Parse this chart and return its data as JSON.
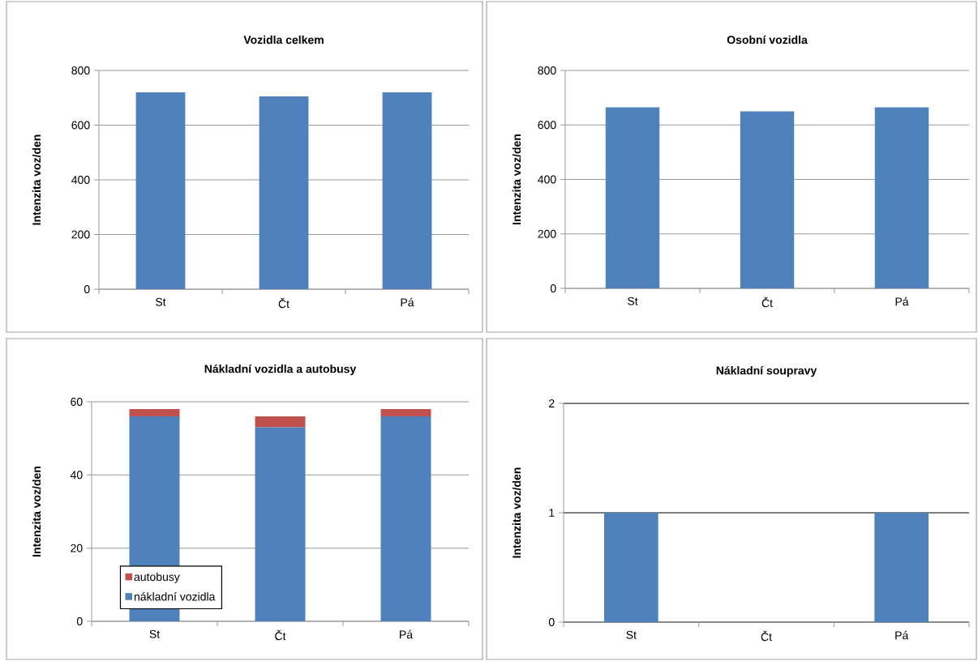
{
  "chart_data": [
    {
      "type": "bar",
      "title": "Vozidla celkem",
      "ylabel": "Intenzita voz/den",
      "categories": [
        "St",
        "Čt",
        "Pá"
      ],
      "values": [
        720,
        705,
        720
      ],
      "color": "#4f81bd",
      "ylim": [
        0,
        800
      ],
      "yticks": [
        0,
        200,
        400,
        600,
        800
      ],
      "grid": "y"
    },
    {
      "type": "bar",
      "title": "Osobní vozidla",
      "ylabel": "Intenzita voz/den",
      "categories": [
        "St",
        "Čt",
        "Pá"
      ],
      "values": [
        665,
        650,
        665
      ],
      "color": "#4f81bd",
      "ylim": [
        0,
        800
      ],
      "yticks": [
        0,
        200,
        400,
        600,
        800
      ],
      "grid": "y"
    },
    {
      "type": "bar",
      "title": "Nákladní vozidla a autobusy",
      "ylabel": "Intenzita voz/den",
      "categories": [
        "St",
        "Čt",
        "Pá"
      ],
      "stacked": true,
      "legend": "bottom left",
      "series": [
        {
          "name": "nákladní vozidla",
          "color": "#4f81bd",
          "values": [
            56,
            53,
            56
          ]
        },
        {
          "name": "autobusy",
          "color": "#c0504d",
          "values": [
            2,
            3,
            2
          ]
        }
      ],
      "ylim": [
        0,
        60
      ],
      "yticks": [
        0,
        20,
        40,
        60
      ],
      "grid": "y"
    },
    {
      "type": "bar",
      "title": "Nákladní soupravy",
      "ylabel": "Intenzita voz/den",
      "categories": [
        "St",
        "Čt",
        "Pá"
      ],
      "values": [
        1,
        0,
        1
      ],
      "color": "#4f81bd",
      "ylim": [
        0,
        2
      ],
      "yticks": [
        0,
        1,
        2
      ],
      "grid": "y"
    }
  ]
}
